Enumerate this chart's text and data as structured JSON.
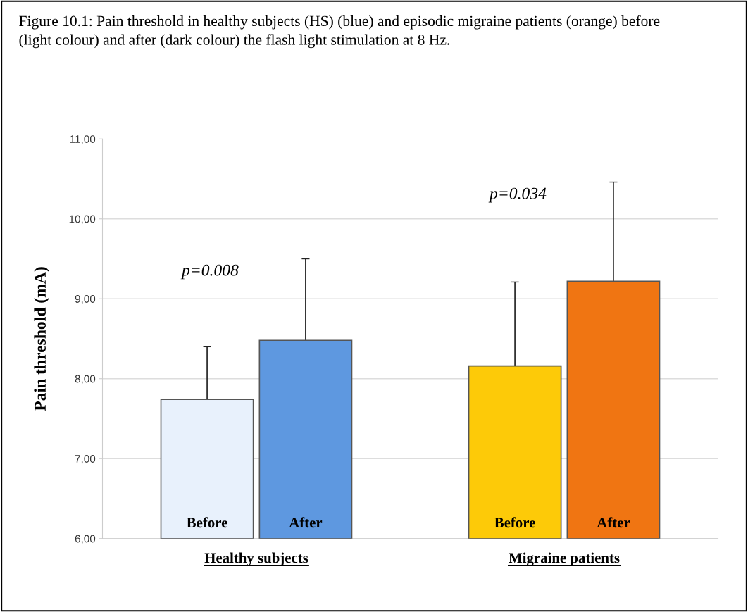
{
  "chart_data": {
    "type": "bar",
    "title": "Figure 10.1: Pain threshold in healthy subjects (HS) (blue) and episodic migraine patients (orange) before (light colour) and after (dark colour) the flash light stimulation at 8 Hz.",
    "ylabel": "Pain threshold (mA)",
    "categories": [
      "Healthy subjects",
      "Migraine patients"
    ],
    "series": [
      {
        "name": "Before",
        "colors": [
          "#e8f1fc",
          "#fdca08"
        ],
        "values": [
          7.74,
          8.16
        ],
        "errors": [
          0.66,
          1.05
        ]
      },
      {
        "name": "After",
        "colors": [
          "#5e98e0",
          "#f07512"
        ],
        "values": [
          8.48,
          9.22
        ],
        "errors": [
          1.02,
          1.24
        ]
      }
    ],
    "ylim": [
      6,
      11
    ],
    "yticks": [
      {
        "value": 6,
        "label": "6,00"
      },
      {
        "value": 7,
        "label": "7,00"
      },
      {
        "value": 8,
        "label": "8,00"
      },
      {
        "value": 9,
        "label": "9,00"
      },
      {
        "value": 10,
        "label": "10,00"
      },
      {
        "value": 11,
        "label": "11,00"
      }
    ],
    "grid": "y",
    "annotations": [
      "p=0.008",
      "p=0.034"
    ]
  }
}
